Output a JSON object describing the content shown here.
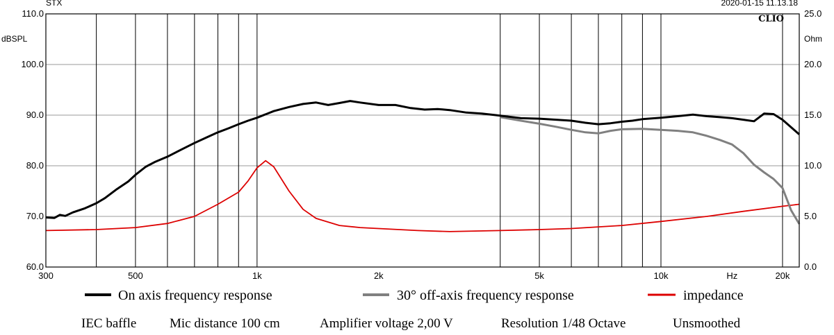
{
  "header": {
    "left_label": "STX",
    "timestamp": "2020-01-15 11.13.18",
    "logo": "CLIO",
    "left_unit": "dBSPL",
    "right_unit": "Ohm"
  },
  "chart_data": {
    "type": "line",
    "x_scale": "log",
    "xlim": [
      300,
      22000
    ],
    "ylim": [
      60,
      110
    ],
    "y2lim": [
      0,
      25
    ],
    "x_ticks": [
      {
        "value": 300,
        "label": "300"
      },
      {
        "value": 500,
        "label": "500"
      },
      {
        "value": 1000,
        "label": "1k"
      },
      {
        "value": 2000,
        "label": "2k"
      },
      {
        "value": 5000,
        "label": "5k"
      },
      {
        "value": 10000,
        "label": "10k"
      },
      {
        "value": 15000,
        "label": "Hz"
      },
      {
        "value": 20000,
        "label": "20k"
      }
    ],
    "x_gridlines": [
      400,
      500,
      600,
      700,
      800,
      900,
      1000,
      4000,
      5000,
      6000,
      7000,
      8000,
      9000,
      10000,
      20000
    ],
    "y_ticks": [
      {
        "value": 60,
        "label": "60.0"
      },
      {
        "value": 70,
        "label": "70.0"
      },
      {
        "value": 80,
        "label": "80.0"
      },
      {
        "value": 90,
        "label": "90.0"
      },
      {
        "value": 100,
        "label": "100.0"
      },
      {
        "value": 110,
        "label": "110.0"
      }
    ],
    "y2_ticks": [
      {
        "value": 0,
        "label": "0.0"
      },
      {
        "value": 5,
        "label": "5.0"
      },
      {
        "value": 10,
        "label": "10.0"
      },
      {
        "value": 15,
        "label": "15.0"
      },
      {
        "value": 20,
        "label": "20.0"
      },
      {
        "value": 25,
        "label": "25.0"
      }
    ],
    "series": [
      {
        "name": "On axis frequency response",
        "color": "#000000",
        "axis": "left",
        "points": [
          [
            300,
            69.8
          ],
          [
            315,
            69.7
          ],
          [
            325,
            70.3
          ],
          [
            335,
            70.1
          ],
          [
            350,
            70.8
          ],
          [
            375,
            71.6
          ],
          [
            400,
            72.6
          ],
          [
            420,
            73.6
          ],
          [
            450,
            75.4
          ],
          [
            480,
            76.9
          ],
          [
            500,
            78.2
          ],
          [
            530,
            79.8
          ],
          [
            560,
            80.8
          ],
          [
            600,
            81.8
          ],
          [
            650,
            83.2
          ],
          [
            700,
            84.5
          ],
          [
            750,
            85.6
          ],
          [
            800,
            86.6
          ],
          [
            850,
            87.4
          ],
          [
            900,
            88.2
          ],
          [
            950,
            88.9
          ],
          [
            1000,
            89.5
          ],
          [
            1100,
            90.8
          ],
          [
            1200,
            91.6
          ],
          [
            1300,
            92.2
          ],
          [
            1400,
            92.5
          ],
          [
            1500,
            92.0
          ],
          [
            1600,
            92.4
          ],
          [
            1700,
            92.8
          ],
          [
            1800,
            92.5
          ],
          [
            2000,
            92.0
          ],
          [
            2200,
            92.0
          ],
          [
            2400,
            91.4
          ],
          [
            2600,
            91.1
          ],
          [
            2800,
            91.2
          ],
          [
            3000,
            91.0
          ],
          [
            3300,
            90.5
          ],
          [
            3600,
            90.3
          ],
          [
            3900,
            90.0
          ],
          [
            4200,
            89.7
          ],
          [
            4500,
            89.4
          ],
          [
            5000,
            89.3
          ],
          [
            5500,
            89.1
          ],
          [
            6000,
            88.9
          ],
          [
            6500,
            88.5
          ],
          [
            7000,
            88.2
          ],
          [
            7500,
            88.4
          ],
          [
            8000,
            88.7
          ],
          [
            8500,
            88.9
          ],
          [
            9000,
            89.2
          ],
          [
            10000,
            89.5
          ],
          [
            11000,
            89.8
          ],
          [
            12000,
            90.1
          ],
          [
            13000,
            89.8
          ],
          [
            14000,
            89.6
          ],
          [
            15000,
            89.4
          ],
          [
            16000,
            89.1
          ],
          [
            17000,
            88.8
          ],
          [
            18000,
            90.3
          ],
          [
            19000,
            90.2
          ],
          [
            20000,
            89.1
          ],
          [
            21000,
            87.6
          ],
          [
            22000,
            86.2
          ]
        ]
      },
      {
        "name": "30° off-axis frequency response",
        "color": "#808080",
        "axis": "left",
        "points": [
          [
            4000,
            89.6
          ],
          [
            4500,
            88.9
          ],
          [
            5000,
            88.3
          ],
          [
            5500,
            87.7
          ],
          [
            6000,
            87.1
          ],
          [
            6500,
            86.6
          ],
          [
            7000,
            86.4
          ],
          [
            7500,
            86.9
          ],
          [
            8000,
            87.2
          ],
          [
            9000,
            87.3
          ],
          [
            10000,
            87.1
          ],
          [
            11000,
            86.9
          ],
          [
            12000,
            86.6
          ],
          [
            13000,
            85.9
          ],
          [
            14000,
            85.1
          ],
          [
            15000,
            84.2
          ],
          [
            16000,
            82.5
          ],
          [
            17000,
            80.2
          ],
          [
            18000,
            78.7
          ],
          [
            19000,
            77.4
          ],
          [
            20000,
            75.6
          ],
          [
            21000,
            71.2
          ],
          [
            22000,
            68.5
          ]
        ]
      },
      {
        "name": "impedance",
        "color": "#dd0000",
        "axis": "right",
        "points": [
          [
            300,
            3.6
          ],
          [
            400,
            3.7
          ],
          [
            500,
            3.9
          ],
          [
            600,
            4.3
          ],
          [
            700,
            5.0
          ],
          [
            800,
            6.2
          ],
          [
            900,
            7.4
          ],
          [
            950,
            8.5
          ],
          [
            1000,
            9.8
          ],
          [
            1050,
            10.5
          ],
          [
            1100,
            9.9
          ],
          [
            1200,
            7.5
          ],
          [
            1300,
            5.7
          ],
          [
            1400,
            4.8
          ],
          [
            1600,
            4.1
          ],
          [
            1800,
            3.9
          ],
          [
            2000,
            3.8
          ],
          [
            2500,
            3.6
          ],
          [
            3000,
            3.5
          ],
          [
            4000,
            3.6
          ],
          [
            5000,
            3.7
          ],
          [
            6000,
            3.8
          ],
          [
            8000,
            4.1
          ],
          [
            10000,
            4.5
          ],
          [
            13000,
            5.0
          ],
          [
            16000,
            5.5
          ],
          [
            20000,
            6.0
          ],
          [
            22000,
            6.2
          ]
        ]
      }
    ],
    "legend": [
      {
        "label": "On axis frequency response",
        "color": "#000000"
      },
      {
        "label": "30° off-axis frequency response",
        "color": "#808080"
      },
      {
        "label": "impedance",
        "color": "#dd0000"
      }
    ]
  },
  "footer": {
    "items": [
      "IEC baffle",
      "Mic distance 100 cm",
      "Amplifier voltage 2,00 V",
      "Resolution 1/48 Octave",
      "Unsmoothed"
    ]
  }
}
